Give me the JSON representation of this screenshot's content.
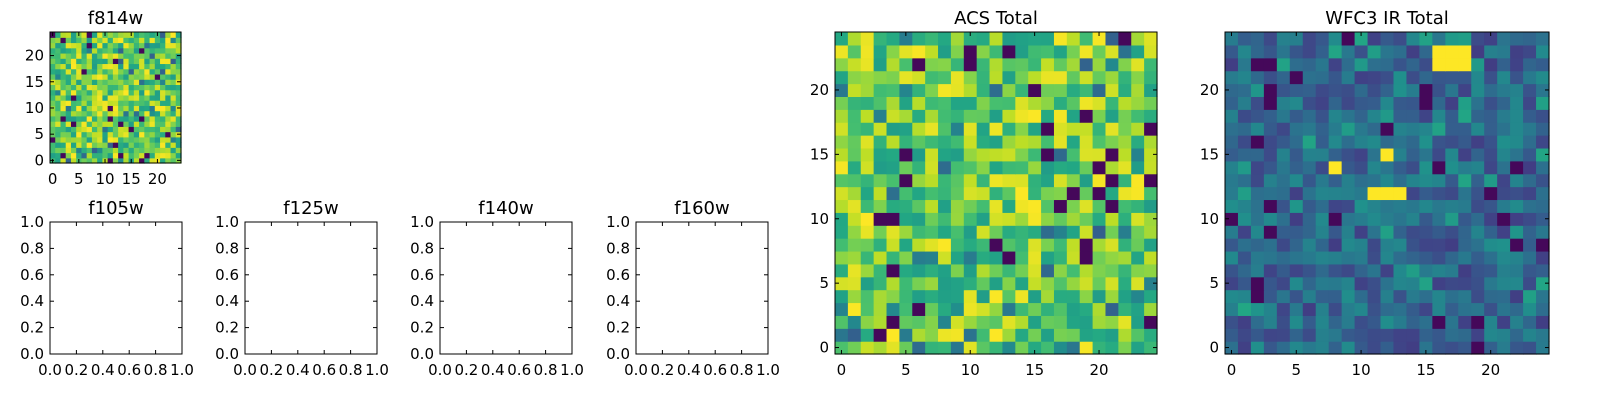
{
  "chart_data": [
    {
      "type": "heatmap",
      "title": "f814w",
      "grid_size": 25,
      "xticks": [
        "0",
        "5",
        "10",
        "15",
        "20"
      ],
      "yticks": [
        "0",
        "5",
        "10",
        "15",
        "20"
      ],
      "xlim": [
        -0.5,
        24.5
      ],
      "ylim": [
        -0.5,
        24.5
      ],
      "colormap": "viridis",
      "seed": 11,
      "mode": "high",
      "bright": []
    },
    {
      "type": "heatmap",
      "title": "f105w",
      "empty": true,
      "xticks": [
        "0.0",
        "0.2",
        "0.4",
        "0.6",
        "0.8",
        "1.0"
      ],
      "yticks": [
        "0.0",
        "0.2",
        "0.4",
        "0.6",
        "0.8",
        "1.0"
      ],
      "xlim": [
        0,
        1
      ],
      "ylim": [
        0,
        1
      ]
    },
    {
      "type": "heatmap",
      "title": "f125w",
      "empty": true,
      "xticks": [
        "0.0",
        "0.2",
        "0.4",
        "0.6",
        "0.8",
        "1.0"
      ],
      "yticks": [
        "0.0",
        "0.2",
        "0.4",
        "0.6",
        "0.8",
        "1.0"
      ],
      "xlim": [
        0,
        1
      ],
      "ylim": [
        0,
        1
      ]
    },
    {
      "type": "heatmap",
      "title": "f140w",
      "empty": true,
      "xticks": [
        "0.0",
        "0.2",
        "0.4",
        "0.6",
        "0.8",
        "1.0"
      ],
      "yticks": [
        "0.0",
        "0.2",
        "0.4",
        "0.6",
        "0.8",
        "1.0"
      ],
      "xlim": [
        0,
        1
      ],
      "ylim": [
        0,
        1
      ]
    },
    {
      "type": "heatmap",
      "title": "f160w",
      "empty": true,
      "xticks": [
        "0.0",
        "0.2",
        "0.4",
        "0.6",
        "0.8",
        "1.0"
      ],
      "yticks": [
        "0.0",
        "0.2",
        "0.4",
        "0.6",
        "0.8",
        "1.0"
      ],
      "xlim": [
        0,
        1
      ],
      "ylim": [
        0,
        1
      ]
    },
    {
      "type": "heatmap",
      "title": "ACS Total",
      "grid_size": 25,
      "xticks": [
        "0",
        "5",
        "10",
        "15",
        "20"
      ],
      "yticks": [
        "0",
        "5",
        "10",
        "15",
        "20"
      ],
      "xlim": [
        -0.5,
        24.5
      ],
      "ylim": [
        -0.5,
        24.5
      ],
      "colormap": "viridis",
      "seed": 23,
      "mode": "high",
      "bright": []
    },
    {
      "type": "heatmap",
      "title": "WFC3 IR Total",
      "grid_size": 25,
      "xticks": [
        "0",
        "5",
        "10",
        "15",
        "20"
      ],
      "yticks": [
        "0",
        "5",
        "10",
        "15",
        "20"
      ],
      "xlim": [
        -0.5,
        24.5
      ],
      "ylim": [
        -0.5,
        24.5
      ],
      "colormap": "viridis",
      "seed": 37,
      "mode": "low",
      "bright": [
        [
          16,
          22
        ],
        [
          16,
          23
        ],
        [
          17,
          22
        ],
        [
          17,
          23
        ],
        [
          18,
          22
        ],
        [
          18,
          23
        ],
        [
          12,
          15
        ],
        [
          8,
          14
        ],
        [
          11,
          12
        ],
        [
          12,
          12
        ],
        [
          13,
          12
        ]
      ]
    }
  ]
}
